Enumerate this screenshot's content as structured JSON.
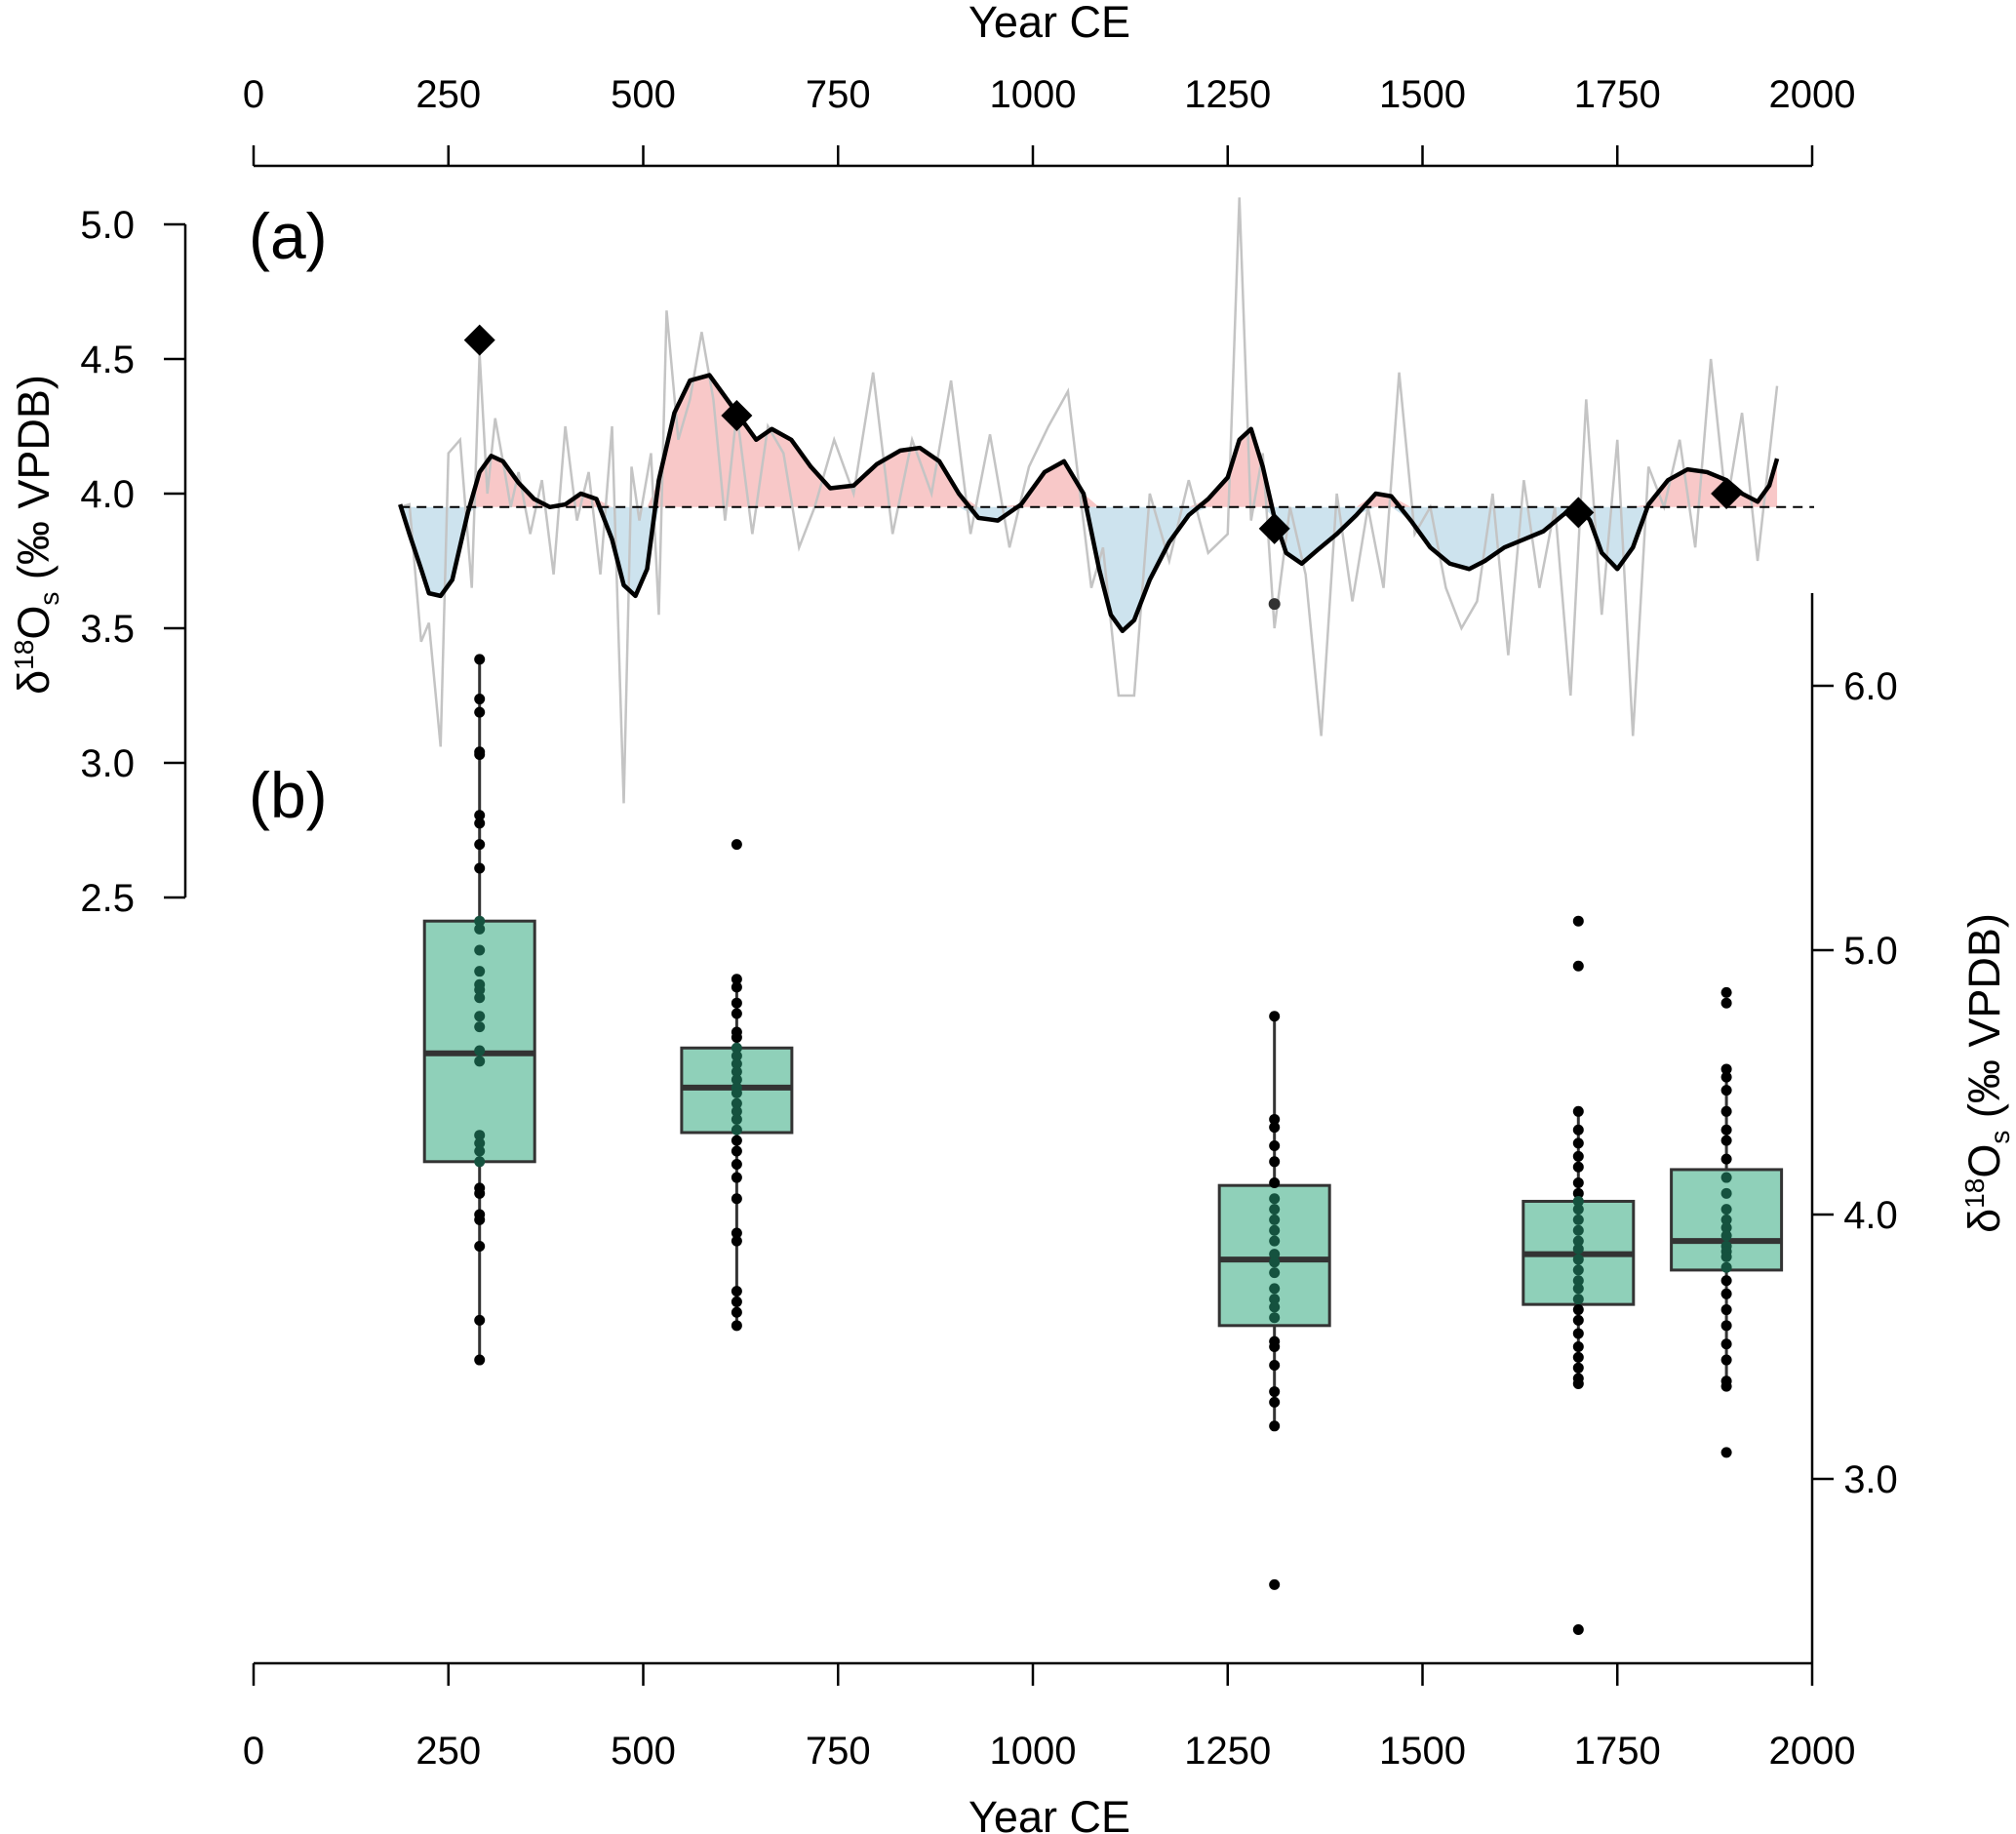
{
  "chart_data": [
    {
      "panel": "(a)",
      "type": "line",
      "xlabel": "Year CE",
      "ylabel_parts": [
        "δ",
        "18",
        "O",
        "s",
        " (‰ VPDB)"
      ],
      "xlim": [
        0,
        2000
      ],
      "ylim": [
        2.5,
        5.1
      ],
      "xticks": [
        0,
        250,
        500,
        750,
        1000,
        1250,
        1500,
        1750,
        2000
      ],
      "yticks": [
        "2.5",
        "3.0",
        "3.5",
        "4.0",
        "4.5",
        "5.0"
      ],
      "baseline": 3.95,
      "colors": {
        "raw": "#c4c4c4",
        "smooth": "#000000",
        "above": "#f8c8c8",
        "below": "#cde3ee",
        "baseline": "#000000"
      },
      "raw_series": {
        "x": [
          188,
          200,
          215,
          225,
          240,
          250,
          265,
          280,
          290,
          300,
          310,
          320,
          330,
          340,
          355,
          370,
          385,
          400,
          415,
          430,
          445,
          460,
          475,
          485,
          495,
          510,
          520,
          530,
          545,
          560,
          575,
          590,
          605,
          620,
          640,
          660,
          680,
          700,
          720,
          745,
          770,
          795,
          820,
          845,
          870,
          895,
          920,
          945,
          970,
          995,
          1020,
          1045,
          1075,
          1090,
          1110,
          1130,
          1150,
          1175,
          1200,
          1225,
          1250,
          1265,
          1280,
          1295,
          1310,
          1330,
          1350,
          1370,
          1390,
          1410,
          1430,
          1450,
          1470,
          1490,
          1510,
          1530,
          1550,
          1570,
          1590,
          1610,
          1630,
          1650,
          1670,
          1690,
          1710,
          1730,
          1750,
          1770,
          1790,
          1810,
          1830,
          1850,
          1870,
          1890,
          1910,
          1930,
          1955
        ],
        "y": [
          3.95,
          3.96,
          3.45,
          3.52,
          3.06,
          4.15,
          4.2,
          3.65,
          4.52,
          4.0,
          4.28,
          4.12,
          3.95,
          4.08,
          3.85,
          4.05,
          3.7,
          4.25,
          3.9,
          4.08,
          3.7,
          4.25,
          2.85,
          4.1,
          3.9,
          4.15,
          3.55,
          4.68,
          4.2,
          4.35,
          4.6,
          4.35,
          3.9,
          4.3,
          3.85,
          4.25,
          4.15,
          3.8,
          3.95,
          4.2,
          4.0,
          4.45,
          3.85,
          4.2,
          4.0,
          4.42,
          3.85,
          4.22,
          3.8,
          4.1,
          4.25,
          4.38,
          3.65,
          3.8,
          3.25,
          3.25,
          4.0,
          3.75,
          4.05,
          3.78,
          3.85,
          5.1,
          3.9,
          4.15,
          3.5,
          3.95,
          3.7,
          3.1,
          4.0,
          3.6,
          3.95,
          3.65,
          4.45,
          3.85,
          3.95,
          3.65,
          3.5,
          3.6,
          4.0,
          3.4,
          4.05,
          3.65,
          3.95,
          3.25,
          4.35,
          3.55,
          4.2,
          3.1,
          4.1,
          3.95,
          4.2,
          3.8,
          4.5,
          3.95,
          4.3,
          3.75,
          4.4
        ]
      },
      "smooth_series": {
        "x": [
          188,
          200,
          215,
          225,
          240,
          255,
          275,
          290,
          305,
          320,
          340,
          360,
          380,
          400,
          420,
          440,
          460,
          475,
          490,
          505,
          520,
          540,
          560,
          585,
          600,
          625,
          645,
          665,
          690,
          715,
          740,
          770,
          800,
          830,
          855,
          880,
          905,
          930,
          955,
          985,
          1015,
          1040,
          1065,
          1085,
          1100,
          1115,
          1130,
          1150,
          1175,
          1200,
          1225,
          1250,
          1265,
          1280,
          1295,
          1310,
          1325,
          1345,
          1365,
          1390,
          1415,
          1440,
          1460,
          1485,
          1510,
          1535,
          1560,
          1580,
          1605,
          1630,
          1655,
          1680,
          1700,
          1715,
          1730,
          1750,
          1770,
          1790,
          1815,
          1840,
          1865,
          1890,
          1910,
          1930,
          1945,
          1955
        ],
        "y": [
          3.96,
          3.85,
          3.72,
          3.63,
          3.62,
          3.68,
          3.93,
          4.08,
          4.14,
          4.12,
          4.04,
          3.98,
          3.95,
          3.96,
          4.0,
          3.98,
          3.83,
          3.66,
          3.62,
          3.72,
          4.05,
          4.3,
          4.42,
          4.44,
          4.38,
          4.28,
          4.2,
          4.24,
          4.2,
          4.1,
          4.02,
          4.03,
          4.11,
          4.16,
          4.17,
          4.12,
          4.0,
          3.91,
          3.9,
          3.96,
          4.08,
          4.12,
          4.0,
          3.72,
          3.55,
          3.49,
          3.53,
          3.68,
          3.82,
          3.92,
          3.98,
          4.06,
          4.2,
          4.24,
          4.1,
          3.91,
          3.78,
          3.74,
          3.79,
          3.85,
          3.92,
          4.0,
          3.99,
          3.9,
          3.8,
          3.74,
          3.72,
          3.75,
          3.8,
          3.83,
          3.86,
          3.92,
          3.96,
          3.9,
          3.78,
          3.72,
          3.8,
          3.96,
          4.05,
          4.09,
          4.08,
          4.05,
          4.0,
          3.97,
          4.03,
          4.13
        ]
      },
      "diamonds": {
        "x": [
          290,
          620,
          1310,
          1700,
          1890
        ],
        "y": [
          4.57,
          4.29,
          3.87,
          3.93,
          4.0
        ]
      },
      "annotations": {
        "x": [
          1310
        ],
        "y": [
          3.59
        ]
      }
    },
    {
      "panel": "(b)",
      "type": "box",
      "xlabel": "Year CE",
      "ylabel_parts": [
        "δ",
        "18",
        "O",
        "s",
        " (‰ VPDB)"
      ],
      "xlim": [
        0,
        2000
      ],
      "ylim": [
        2.3,
        6.35
      ],
      "yticks": [
        "3.0",
        "4.0",
        "5.0",
        "6.0"
      ],
      "colors": {
        "box": "#8fd0b9",
        "median": "#333333",
        "points": "#000000"
      },
      "boxes": [
        {
          "x": 290,
          "min": 3.45,
          "q1": 4.2,
          "median": 4.61,
          "q3": 5.11,
          "max": 6.1,
          "points": [
            6.1,
            5.95,
            5.9,
            5.75,
            5.74,
            5.51,
            5.48,
            5.4,
            5.31,
            5.11,
            5.08,
            5.0,
            4.92,
            4.87,
            4.85,
            4.82,
            4.75,
            4.71,
            4.62,
            4.58,
            4.3,
            4.27,
            4.24,
            4.2,
            4.1,
            4.08,
            4.0,
            3.98,
            3.88,
            3.6,
            3.45
          ]
        },
        {
          "x": 620,
          "min": 3.58,
          "q1": 4.31,
          "median": 4.48,
          "q3": 4.63,
          "max": 4.89,
          "points": [
            5.4,
            4.89,
            4.86,
            4.8,
            4.76,
            4.69,
            4.67,
            4.63,
            4.6,
            4.57,
            4.54,
            4.51,
            4.48,
            4.46,
            4.42,
            4.39,
            4.36,
            4.32,
            4.28,
            4.24,
            4.19,
            4.14,
            4.06,
            3.93,
            3.9,
            3.71,
            3.67,
            3.63,
            3.58
          ]
        },
        {
          "x": 1310,
          "min": 3.19,
          "q1": 3.58,
          "median": 3.83,
          "q3": 4.11,
          "max": 4.75,
          "points": [
            4.75,
            4.36,
            4.33,
            4.26,
            4.2,
            4.12,
            4.06,
            4.02,
            3.98,
            3.94,
            3.9,
            3.85,
            3.82,
            3.78,
            3.72,
            3.68,
            3.65,
            3.61,
            3.52,
            3.5,
            3.43,
            3.33,
            3.29,
            3.2,
            2.6
          ]
        },
        {
          "x": 1700,
          "min": 3.35,
          "q1": 3.66,
          "median": 3.85,
          "q3": 4.05,
          "max": 4.39,
          "points": [
            5.11,
            4.94,
            4.39,
            4.32,
            4.27,
            4.22,
            4.18,
            4.12,
            4.08,
            4.05,
            4.02,
            3.98,
            3.94,
            3.9,
            3.87,
            3.83,
            3.79,
            3.75,
            3.72,
            3.68,
            3.64,
            3.6,
            3.55,
            3.5,
            3.46,
            3.42,
            3.38,
            3.36,
            2.43
          ]
        },
        {
          "x": 1890,
          "min": 3.35,
          "q1": 3.79,
          "median": 3.9,
          "q3": 4.17,
          "max": 4.55,
          "points": [
            4.84,
            4.8,
            4.55,
            4.52,
            4.47,
            4.39,
            4.32,
            4.28,
            4.21,
            4.14,
            4.08,
            4.02,
            3.98,
            3.95,
            3.92,
            3.88,
            3.86,
            3.84,
            3.8,
            3.75,
            3.7,
            3.64,
            3.58,
            3.51,
            3.45,
            3.37,
            3.35,
            3.1
          ]
        }
      ]
    }
  ]
}
